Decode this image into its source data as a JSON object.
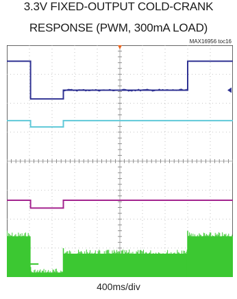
{
  "chart_data": {
    "type": "line",
    "title_line1": "3.3V FIXED-OUTPUT COLD-CRANK",
    "title_line2": "RESPONSE (PWM, 300mA LOAD)",
    "figure_tag": "MAX16956 toc16",
    "xlabel": "400ms/div",
    "x_divisions": 10,
    "y_divisions": 8,
    "grid": true,
    "trigger_marker_color": "#e8641e",
    "series": [
      {
        "color": "#2e3192",
        "points": [
          [
            0,
            0.55
          ],
          [
            1.05,
            0.55
          ],
          [
            1.05,
            1.85
          ],
          [
            2.5,
            1.85
          ],
          [
            2.5,
            1.55
          ],
          [
            8.0,
            1.55
          ],
          [
            8.0,
            0.55
          ],
          [
            10,
            0.55
          ]
        ]
      },
      {
        "color": "#5ec8d8",
        "points": [
          [
            0,
            2.6
          ],
          [
            1.05,
            2.6
          ],
          [
            1.05,
            2.82
          ],
          [
            2.5,
            2.82
          ],
          [
            2.5,
            2.6
          ],
          [
            10,
            2.6
          ]
        ]
      },
      {
        "color": "#a3238e",
        "points": [
          [
            0,
            5.35
          ],
          [
            1.05,
            5.35
          ],
          [
            1.05,
            5.62
          ],
          [
            2.5,
            5.62
          ],
          [
            2.5,
            5.35
          ],
          [
            10,
            5.35
          ]
        ]
      }
    ],
    "pwm_trace": {
      "color": "#3cc832",
      "segments": [
        {
          "x_start": 0,
          "x_end": 1.05,
          "y_top": 6.45
        },
        {
          "x_start": 1.05,
          "x_end": 2.5,
          "y_top": 7.7
        },
        {
          "x_start": 2.5,
          "x_end": 8.0,
          "y_top": 7.05
        },
        {
          "x_start": 8.0,
          "x_end": 10,
          "y_top": 6.45
        }
      ],
      "y_bottom": 8
    }
  }
}
